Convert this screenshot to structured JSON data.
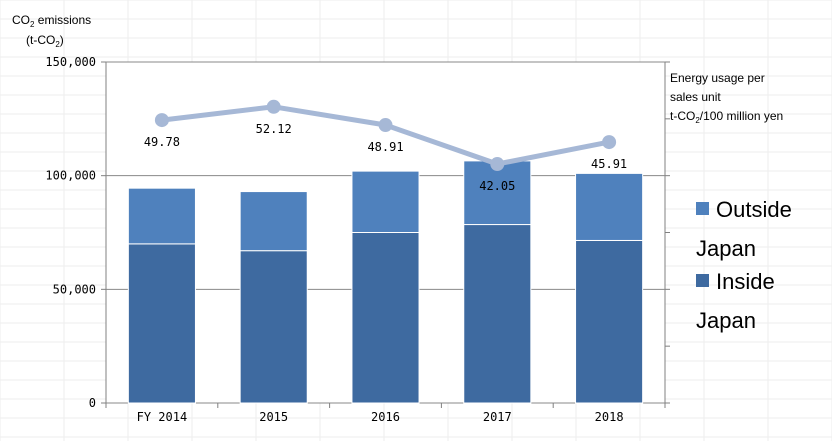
{
  "chart_data": {
    "type": "bar",
    "stacked": true,
    "categories": [
      "FY 2014",
      "2015",
      "2016",
      "2017",
      "2018"
    ],
    "y_axis_title": {
      "line1_prefix": "CO",
      "line1_sub": "2",
      "line1_suffix": " emissions",
      "line2_prefix": "(t-CO",
      "line2_sub": "2",
      "line2_suffix": ")"
    },
    "ylim": [
      0,
      150000
    ],
    "y_ticks": [
      0,
      50000,
      100000,
      150000
    ],
    "y_tick_labels": [
      "0",
      "50,000",
      "100,000",
      "150,000"
    ],
    "series": [
      {
        "name_line1": "Inside",
        "name_line2": "Japan",
        "color": "#3e6aa0",
        "values": [
          70000,
          67000,
          75000,
          78500,
          71500
        ]
      },
      {
        "name_line1": "Outside",
        "name_line2": "Japan",
        "color": "#4f81bd",
        "values": [
          24500,
          26000,
          27000,
          28000,
          29500
        ]
      }
    ],
    "line_series": {
      "color": "#a6b8d6",
      "values": [
        49.78,
        52.12,
        48.91,
        42.05,
        45.91
      ],
      "labels": [
        "49.78",
        "52.12",
        "48.91",
        "42.05",
        "45.91"
      ],
      "axis_title": {
        "line1": "Energy usage per",
        "line2": "sales unit",
        "line3_prefix": "t-CO",
        "line3_sub": "2",
        "line3_suffix": "/100 million yen"
      }
    },
    "grid": true,
    "legend_position": "right"
  }
}
